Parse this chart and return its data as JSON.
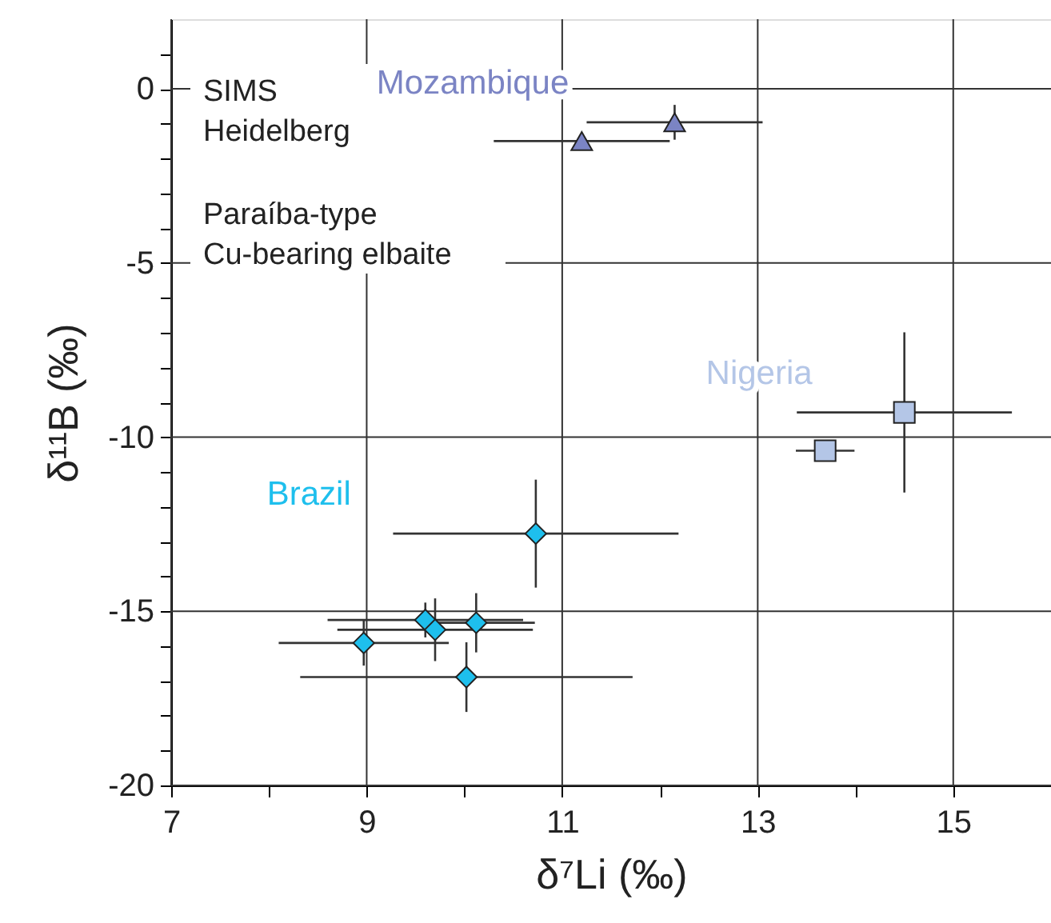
{
  "chart_data": {
    "type": "scatter",
    "xlabel": "δ⁷Li (‰)",
    "ylabel": "δ¹¹B (‰)",
    "annotations": [
      "SIMS",
      "Heidelberg",
      "Paraíba-type",
      "Cu-bearing elbaite"
    ],
    "xlim": [
      7,
      16
    ],
    "ylim": [
      -20,
      2
    ],
    "xticks": [
      7,
      {
        "value": 8,
        "label": null
      },
      9,
      {
        "value": 10,
        "label": null
      },
      11,
      {
        "value": 12,
        "label": null
      },
      13,
      {
        "value": 14,
        "label": null
      },
      15,
      {
        "value": 16,
        "label": null
      }
    ],
    "yticks": [
      -20,
      {
        "value": -19,
        "label": null
      },
      {
        "value": -18,
        "label": null
      },
      {
        "value": -17,
        "label": null
      },
      {
        "value": -16,
        "label": null
      },
      -15,
      {
        "value": -14,
        "label": null
      },
      {
        "value": -13,
        "label": null
      },
      {
        "value": -12,
        "label": null
      },
      {
        "value": -11,
        "label": null
      },
      -10,
      {
        "value": -9,
        "label": null
      },
      {
        "value": -8,
        "label": null
      },
      {
        "value": -7,
        "label": null
      },
      {
        "value": -6,
        "label": null
      },
      -5,
      {
        "value": -4,
        "label": null
      },
      {
        "value": -3,
        "label": null
      },
      {
        "value": -2,
        "label": null
      },
      {
        "value": -1,
        "label": null
      },
      0,
      {
        "value": 1,
        "label": null
      }
    ],
    "grid": true,
    "series": [
      {
        "name": "Mozambique",
        "color": "#7b84c4",
        "marker": "triangle",
        "x": [
          11.2,
          12.15
        ],
        "values": [
          -1.5,
          -0.96
        ],
        "xerrors": [
          0.9,
          0.9
        ],
        "errors": [
          null,
          0.5
        ]
      },
      {
        "name": "Nigeria",
        "color": "#b4c6e7",
        "marker": "square",
        "x": [
          13.69,
          14.5
        ],
        "values": [
          -10.39,
          -9.29
        ],
        "xerrors": [
          0.3,
          1.1
        ],
        "errors": [
          null,
          2.3
        ]
      },
      {
        "name": "Brazil",
        "color": "#1ebfed",
        "marker": "diamond",
        "x": [
          10.73,
          8.97,
          9.6,
          9.7,
          10.12,
          10.02
        ],
        "values": [
          -12.77,
          -15.91,
          -15.25,
          -15.53,
          -15.33,
          -16.89
        ],
        "xerrors": [
          1.46,
          0.87,
          1.0,
          1.0,
          0.6,
          1.7
        ],
        "errors": [
          1.55,
          0.65,
          0.5,
          0.9,
          0.85,
          1.0
        ]
      }
    ]
  }
}
